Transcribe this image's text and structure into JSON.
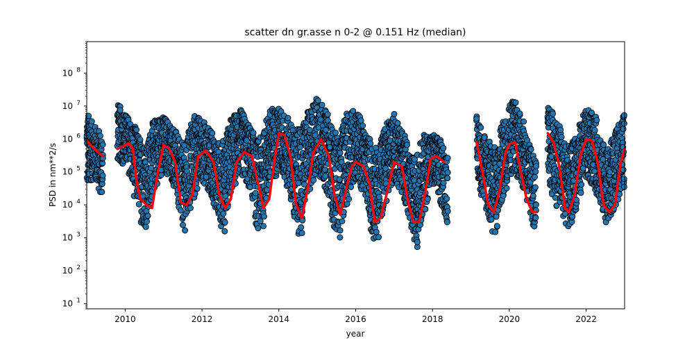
{
  "chart_data": {
    "type": "scatter",
    "title": "scatter dn gr.asse n 0-2 @ 0.151 Hz (median)",
    "xlabel": "year",
    "ylabel": "PSD in nm**2/s",
    "xlim": [
      2009.0,
      2023.0
    ],
    "ylim": [
      7.0,
      900000000.0
    ],
    "yscale": "log",
    "grid": false,
    "legend": "none",
    "x_ticks": [
      2010,
      2012,
      2014,
      2016,
      2018,
      2020,
      2022
    ],
    "x_tick_labels": [
      "2010",
      "2012",
      "2014",
      "2016",
      "2018",
      "2020",
      "2022"
    ],
    "y_ticks": [
      10,
      100,
      1000,
      10000,
      100000,
      1000000,
      10000000,
      100000000
    ],
    "y_tick_labels": [
      "10^1",
      "10^2",
      "10^3",
      "10^4",
      "10^5",
      "10^6",
      "10^7",
      "10^8"
    ],
    "colors": {
      "scatter_fill": "#1f77b4",
      "scatter_edge": "#000000",
      "median_line": "#ff0000"
    },
    "series": [
      {
        "kind": "scatter_envelope",
        "description_values": "daily PSD samples; per-period low/high envelope (year, low PSD, high PSD)",
        "segments": [
          [
            [
              2009.0,
              20000,
              7000000
            ],
            [
              2009.15,
              60000,
              3000000
            ],
            [
              2009.3,
              25000,
              2000000
            ],
            [
              2009.42,
              15000,
              1500000
            ]
          ],
          [
            [
              2009.8,
              200000,
              12000000
            ],
            [
              2010.0,
              150000,
              6000000
            ],
            [
              2010.2,
              20000,
              3000000
            ],
            [
              2010.4,
              3000,
              1000000
            ],
            [
              2010.6,
              1500,
              800000
            ],
            [
              2010.8,
              30000,
              5000000
            ],
            [
              2011.0,
              100000,
              5000000
            ],
            [
              2011.2,
              50000,
              3000000
            ],
            [
              2011.4,
              3000,
              1000000
            ],
            [
              2011.6,
              1300,
              500000
            ],
            [
              2011.8,
              10000,
              6000000
            ],
            [
              2012.0,
              50000,
              4000000
            ],
            [
              2012.2,
              20000,
              2000000
            ],
            [
              2012.4,
              3000,
              800000
            ],
            [
              2012.6,
              1500,
              1000000
            ],
            [
              2012.8,
              20000,
              5000000
            ],
            [
              2013.0,
              80000,
              8000000
            ],
            [
              2013.2,
              30000,
              3000000
            ],
            [
              2013.4,
              2000,
              1000000
            ],
            [
              2013.6,
              1400,
              1200000
            ],
            [
              2013.8,
              30000,
              9000000
            ],
            [
              2014.0,
              100000,
              9000000
            ],
            [
              2014.2,
              30000,
              5000000
            ],
            [
              2014.4,
              2000,
              2000000
            ],
            [
              2014.6,
              800,
              2000000
            ],
            [
              2014.8,
              20000,
              8000000
            ],
            [
              2015.0,
              80000,
              20000000
            ],
            [
              2015.2,
              30000,
              8000000
            ],
            [
              2015.4,
              2000,
              2000000
            ],
            [
              2015.6,
              900,
              1000000
            ],
            [
              2015.8,
              10000,
              7000000
            ],
            [
              2016.0,
              50000,
              9000000
            ],
            [
              2016.2,
              20000,
              2000000
            ],
            [
              2016.4,
              1000,
              1000000
            ],
            [
              2016.6,
              700,
              300000
            ],
            [
              2016.8,
              10000,
              3000000
            ],
            [
              2017.0,
              50000,
              6000000
            ],
            [
              2017.2,
              20000,
              2000000
            ],
            [
              2017.4,
              1500,
              300000
            ],
            [
              2017.6,
              500,
              300000
            ],
            [
              2017.8,
              5000,
              1500000
            ],
            [
              2018.0,
              30000,
              1500000
            ],
            [
              2018.2,
              10000,
              1000000
            ],
            [
              2018.4,
              2000,
              300000
            ]
          ],
          [
            [
              2019.15,
              50000,
              5000000
            ],
            [
              2019.3,
              10000,
              2000000
            ],
            [
              2019.5,
              1500,
              800000
            ],
            [
              2019.7,
              1000,
              500000
            ],
            [
              2019.9,
              20000,
              5000000
            ],
            [
              2020.1,
              100000,
              20000000
            ],
            [
              2020.3,
              40000,
              5000000
            ],
            [
              2020.5,
              3000,
              800000
            ],
            [
              2020.7,
              1500,
              200000
            ]
          ],
          [
            [
              2021.0,
              30000,
              10000000
            ],
            [
              2021.2,
              10000,
              5000000
            ],
            [
              2021.4,
              3000,
              1000000
            ],
            [
              2021.6,
              1500,
              500000
            ],
            [
              2021.8,
              10000,
              2000000
            ],
            [
              2022.0,
              50000,
              8000000
            ],
            [
              2022.2,
              30000,
              6000000
            ],
            [
              2022.4,
              5000,
              800000
            ],
            [
              2022.6,
              1300,
              500000
            ],
            [
              2022.8,
              10000,
              2000000
            ],
            [
              2023.0,
              30000,
              6000000
            ]
          ]
        ]
      },
      {
        "kind": "median_line",
        "segments": [
          [
            [
              2009.0,
              900000
            ],
            [
              2009.1,
              650000
            ],
            [
              2009.2,
              500000
            ],
            [
              2009.3,
              400000
            ],
            [
              2009.42,
              300000
            ]
          ],
          [
            [
              2009.8,
              500000
            ],
            [
              2009.95,
              600000
            ],
            [
              2010.1,
              750000
            ],
            [
              2010.2,
              500000
            ],
            [
              2010.3,
              50000
            ],
            [
              2010.4,
              15000
            ],
            [
              2010.55,
              10000
            ],
            [
              2010.7,
              8000
            ],
            [
              2010.85,
              100000
            ],
            [
              2011.0,
              650000
            ],
            [
              2011.15,
              500000
            ],
            [
              2011.3,
              200000
            ],
            [
              2011.45,
              12000
            ],
            [
              2011.6,
              10000
            ],
            [
              2011.75,
              20000
            ],
            [
              2011.9,
              300000
            ],
            [
              2012.1,
              450000
            ],
            [
              2012.3,
              200000
            ],
            [
              2012.45,
              20000
            ],
            [
              2012.6,
              8000
            ],
            [
              2012.75,
              15000
            ],
            [
              2012.9,
              200000
            ],
            [
              2013.1,
              400000
            ],
            [
              2013.3,
              300000
            ],
            [
              2013.45,
              50000
            ],
            [
              2013.6,
              8000
            ],
            [
              2013.75,
              15000
            ],
            [
              2013.9,
              300000
            ],
            [
              2014.0,
              1500000
            ],
            [
              2014.15,
              1300000
            ],
            [
              2014.3,
              300000
            ],
            [
              2014.45,
              10000
            ],
            [
              2014.6,
              4000
            ],
            [
              2014.75,
              30000
            ],
            [
              2014.9,
              400000
            ],
            [
              2015.1,
              1000000
            ],
            [
              2015.3,
              300000
            ],
            [
              2015.45,
              20000
            ],
            [
              2015.6,
              5000
            ],
            [
              2015.75,
              30000
            ],
            [
              2015.9,
              150000
            ],
            [
              2016.0,
              200000
            ],
            [
              2016.2,
              150000
            ],
            [
              2016.35,
              50000
            ],
            [
              2016.5,
              3000
            ],
            [
              2016.65,
              4000
            ],
            [
              2016.8,
              20000
            ],
            [
              2017.0,
              200000
            ],
            [
              2017.2,
              150000
            ],
            [
              2017.35,
              15000
            ],
            [
              2017.5,
              3000
            ],
            [
              2017.65,
              3000
            ],
            [
              2017.8,
              20000
            ],
            [
              2017.95,
              250000
            ],
            [
              2018.1,
              300000
            ],
            [
              2018.3,
              200000
            ]
          ],
          [
            [
              2019.15,
              800000
            ],
            [
              2019.3,
              100000
            ],
            [
              2019.45,
              10000
            ],
            [
              2019.6,
              6000
            ],
            [
              2019.75,
              30000
            ],
            [
              2019.9,
              400000
            ],
            [
              2020.0,
              700000
            ],
            [
              2020.15,
              800000
            ],
            [
              2020.3,
              100000
            ],
            [
              2020.45,
              15000
            ],
            [
              2020.6,
              6000
            ],
            [
              2020.7,
              6000
            ]
          ],
          [
            [
              2021.0,
              1500000
            ],
            [
              2021.15,
              800000
            ],
            [
              2021.3,
              150000
            ],
            [
              2021.45,
              8000
            ],
            [
              2021.55,
              6000
            ],
            [
              2021.7,
              20000
            ],
            [
              2021.85,
              300000
            ],
            [
              2022.0,
              1000000
            ],
            [
              2022.15,
              900000
            ],
            [
              2022.3,
              200000
            ],
            [
              2022.45,
              10000
            ],
            [
              2022.6,
              6000
            ],
            [
              2022.75,
              10000
            ],
            [
              2022.9,
              200000
            ],
            [
              2023.0,
              500000
            ]
          ]
        ]
      }
    ]
  }
}
